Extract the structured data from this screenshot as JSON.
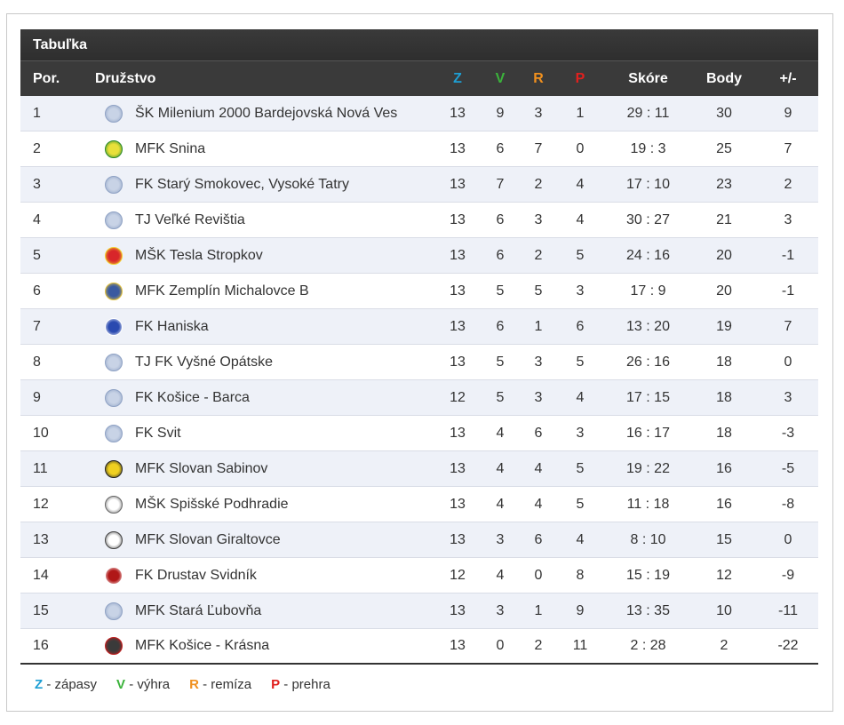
{
  "table": {
    "title": "Tabuľka",
    "headers": {
      "pos": "Por.",
      "team": "Družstvo",
      "z": "Z",
      "v": "V",
      "r": "R",
      "p": "P",
      "score": "Skóre",
      "points": "Body",
      "diff": "+/-"
    },
    "rows": [
      {
        "pos": "1",
        "team": "ŠK Milenium 2000 Bardejovská Nová Ves",
        "z": "13",
        "v": "9",
        "r": "3",
        "p": "1",
        "score": "29 : 11",
        "points": "30",
        "diff": "9",
        "icon": "default-ball-icon"
      },
      {
        "pos": "2",
        "team": "MFK Snina",
        "z": "13",
        "v": "6",
        "r": "7",
        "p": "0",
        "score": "19 : 3",
        "points": "25",
        "diff": "7",
        "icon": "snina-crest-icon"
      },
      {
        "pos": "3",
        "team": "FK Starý Smokovec, Vysoké Tatry",
        "z": "13",
        "v": "7",
        "r": "2",
        "p": "4",
        "score": "17 : 10",
        "points": "23",
        "diff": "2",
        "icon": "default-ball-icon"
      },
      {
        "pos": "4",
        "team": "TJ Veľké Revištia",
        "z": "13",
        "v": "6",
        "r": "3",
        "p": "4",
        "score": "30 : 27",
        "points": "21",
        "diff": "3",
        "icon": "default-ball-icon"
      },
      {
        "pos": "5",
        "team": "MŠK Tesla Stropkov",
        "z": "13",
        "v": "6",
        "r": "2",
        "p": "5",
        "score": "24 : 16",
        "points": "20",
        "diff": "-1",
        "icon": "stropkov-crest-icon"
      },
      {
        "pos": "6",
        "team": "MFK Zemplín Michalovce B",
        "z": "13",
        "v": "5",
        "r": "5",
        "p": "3",
        "score": "17 : 9",
        "points": "20",
        "diff": "-1",
        "icon": "michalovce-crest-icon"
      },
      {
        "pos": "7",
        "team": "FK Haniska",
        "z": "13",
        "v": "6",
        "r": "1",
        "p": "6",
        "score": "13 : 20",
        "points": "19",
        "diff": "7",
        "icon": "haniska-crest-icon"
      },
      {
        "pos": "8",
        "team": "TJ FK Vyšné Opátske",
        "z": "13",
        "v": "5",
        "r": "3",
        "p": "5",
        "score": "26 : 16",
        "points": "18",
        "diff": "0",
        "icon": "default-ball-icon"
      },
      {
        "pos": "9",
        "team": "FK Košice - Barca",
        "z": "12",
        "v": "5",
        "r": "3",
        "p": "4",
        "score": "17 : 15",
        "points": "18",
        "diff": "3",
        "icon": "default-ball-icon"
      },
      {
        "pos": "10",
        "team": "FK Svit",
        "z": "13",
        "v": "4",
        "r": "6",
        "p": "3",
        "score": "16 : 17",
        "points": "18",
        "diff": "-3",
        "icon": "default-ball-icon"
      },
      {
        "pos": "11",
        "team": "MFK Slovan Sabinov",
        "z": "13",
        "v": "4",
        "r": "4",
        "p": "5",
        "score": "19 : 22",
        "points": "16",
        "diff": "-5",
        "icon": "sabinov-crest-icon"
      },
      {
        "pos": "12",
        "team": "MŠK Spišské Podhradie",
        "z": "13",
        "v": "4",
        "r": "4",
        "p": "5",
        "score": "11 : 18",
        "points": "16",
        "diff": "-8",
        "icon": "podhradie-crest-icon"
      },
      {
        "pos": "13",
        "team": "MFK Slovan Giraltovce",
        "z": "13",
        "v": "3",
        "r": "6",
        "p": "4",
        "score": "8 : 10",
        "points": "15",
        "diff": "0",
        "icon": "giraltovce-crest-icon"
      },
      {
        "pos": "14",
        "team": "FK Drustav Svidník",
        "z": "12",
        "v": "4",
        "r": "0",
        "p": "8",
        "score": "15 : 19",
        "points": "12",
        "diff": "-9",
        "icon": "svidnik-crest-icon"
      },
      {
        "pos": "15",
        "team": "MFK Stará Ľubovňa",
        "z": "13",
        "v": "3",
        "r": "1",
        "p": "9",
        "score": "13 : 35",
        "points": "10",
        "diff": "-11",
        "icon": "default-ball-icon"
      },
      {
        "pos": "16",
        "team": "MFK Košice - Krásna",
        "z": "13",
        "v": "0",
        "r": "2",
        "p": "11",
        "score": "2 : 28",
        "points": "2",
        "diff": "-22",
        "icon": "krasna-crest-icon"
      }
    ]
  },
  "legend": [
    {
      "key": "Z",
      "text": " - zápasy",
      "color": "#1e9fd4"
    },
    {
      "key": "V",
      "text": " - výhra",
      "color": "#3bb33b"
    },
    {
      "key": "R",
      "text": " - remíza",
      "color": "#f0901e"
    },
    {
      "key": "P",
      "text": " - prehra",
      "color": "#e0201e"
    }
  ],
  "colors": {
    "header_bg": "#3a3a3a",
    "alt_row": "#eef1f8"
  }
}
